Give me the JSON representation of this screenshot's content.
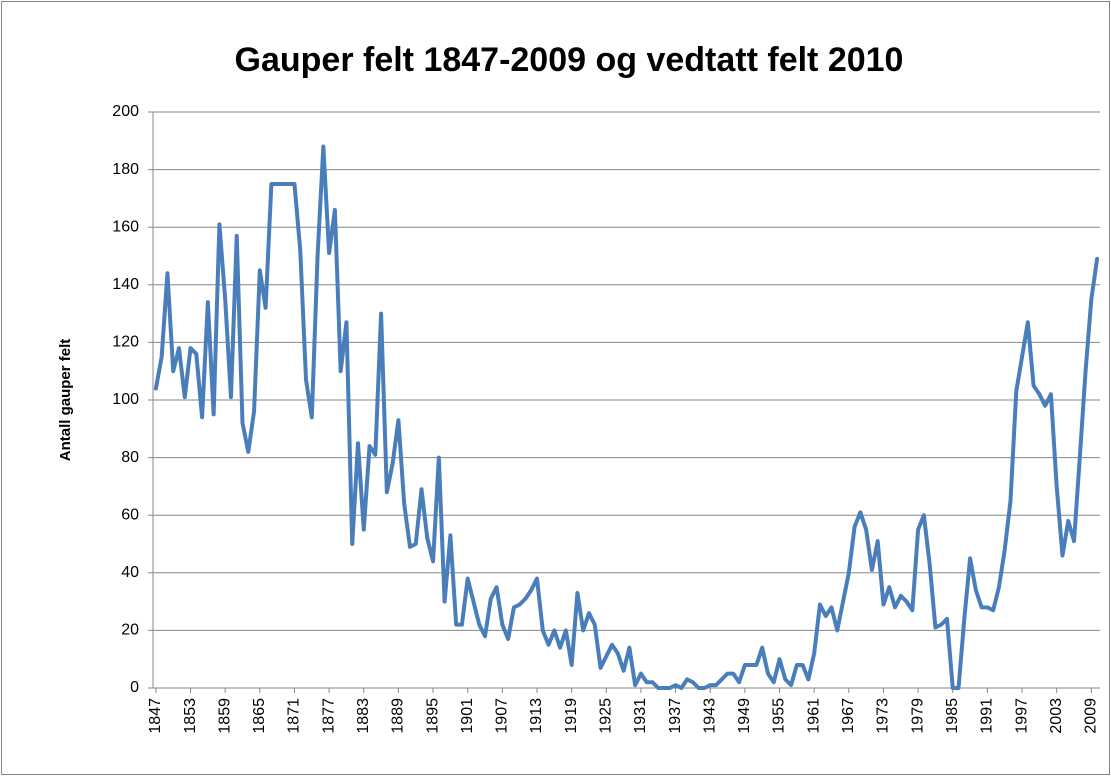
{
  "chart_data": {
    "type": "line",
    "title": "Gauper felt 1847-2009 og vedtatt felt 2010",
    "y_label": "Antall gauper felt",
    "categories": [
      "1847",
      null,
      null,
      null,
      null,
      null,
      "1853",
      null,
      null,
      null,
      null,
      null,
      "1859",
      null,
      null,
      null,
      null,
      null,
      "1865",
      null,
      null,
      null,
      null,
      null,
      "1871",
      null,
      null,
      null,
      null,
      null,
      "1877",
      null,
      null,
      null,
      null,
      null,
      "1883",
      null,
      null,
      null,
      null,
      null,
      "1889",
      null,
      null,
      null,
      null,
      null,
      "1895",
      null,
      null,
      null,
      null,
      null,
      "1901",
      null,
      null,
      null,
      null,
      null,
      "1907",
      null,
      null,
      null,
      null,
      null,
      "1913",
      null,
      null,
      null,
      null,
      null,
      "1919",
      null,
      null,
      null,
      null,
      null,
      "1925",
      null,
      null,
      null,
      null,
      null,
      "1931",
      null,
      null,
      null,
      null,
      null,
      "1937",
      null,
      null,
      null,
      null,
      null,
      "1943",
      null,
      null,
      null,
      null,
      null,
      "1949",
      null,
      null,
      null,
      null,
      null,
      "1955",
      null,
      null,
      null,
      null,
      null,
      "1961",
      null,
      null,
      null,
      null,
      null,
      "1967",
      null,
      null,
      null,
      null,
      null,
      "1973",
      null,
      null,
      null,
      null,
      null,
      "1979",
      null,
      null,
      null,
      null,
      null,
      "1985",
      null,
      null,
      null,
      null,
      null,
      "1991",
      null,
      null,
      null,
      null,
      null,
      "1997",
      null,
      null,
      null,
      null,
      null,
      "2003",
      null,
      null,
      null,
      null,
      null,
      "2009",
      null
    ],
    "values": [
      104,
      115,
      144,
      110,
      118,
      101,
      118,
      116,
      94,
      134,
      95,
      161,
      135,
      101,
      157,
      92,
      82,
      96,
      145,
      132,
      175,
      175,
      175,
      175,
      175,
      152,
      107,
      94,
      150,
      188,
      151,
      166,
      110,
      127,
      50,
      85,
      55,
      84,
      81,
      130,
      68,
      78,
      93,
      64,
      49,
      50,
      69,
      52,
      44,
      80,
      30,
      53,
      22,
      22,
      38,
      30,
      22,
      18,
      31,
      35,
      22,
      17,
      28,
      29,
      31,
      34,
      38,
      20,
      15,
      20,
      14,
      20,
      8,
      33,
      20,
      26,
      22,
      7,
      11,
      15,
      12,
      6,
      14,
      1,
      5,
      2,
      2,
      0,
      0,
      0,
      1,
      0,
      3,
      2,
      0,
      0,
      1,
      1,
      3,
      5,
      5,
      2,
      8,
      8,
      8,
      14,
      5,
      2,
      10,
      3,
      1,
      8,
      8,
      3,
      12,
      29,
      25,
      28,
      20,
      30,
      40,
      56,
      61,
      55,
      41,
      51,
      29,
      35,
      28,
      32,
      30,
      27,
      55,
      60,
      43,
      21,
      22,
      24,
      0,
      0,
      24,
      45,
      34,
      28,
      28,
      27,
      35,
      48,
      65,
      103,
      115,
      127,
      105,
      102,
      98,
      102,
      70,
      46,
      58,
      51,
      80,
      110,
      135,
      149
    ],
    "color": "#4a7ebb",
    "ylim": [
      0,
      200
    ],
    "yticks": [
      0,
      20,
      40,
      60,
      80,
      100,
      120,
      140,
      160,
      180,
      200
    ],
    "grid": true
  }
}
